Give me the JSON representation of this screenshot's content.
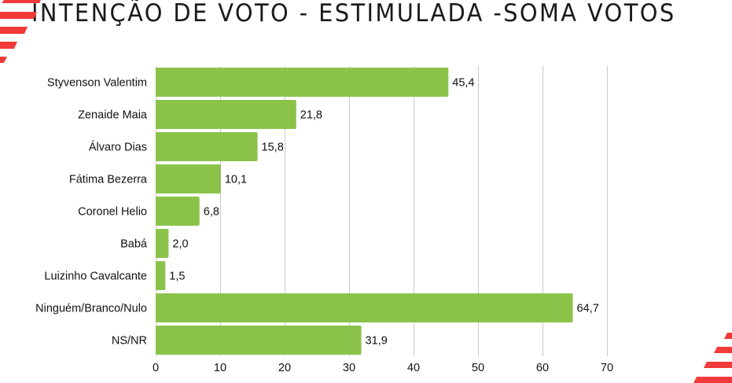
{
  "title": "INTENÇÃO DE VOTO - ESTIMULADA -SOMA VOTOS",
  "colors": {
    "bar": "#8BC34A",
    "grid": "#C9C9C9",
    "accent": "#F23A3A",
    "text": "#111111"
  },
  "chart_data": {
    "type": "bar",
    "orientation": "horizontal",
    "title": "INTENÇÃO DE VOTO - ESTIMULADA -SOMA VOTOS",
    "xlabel": "",
    "ylabel": "",
    "categories": [
      "Styvenson Valentim",
      "Zenaide Maia",
      "Álvaro Dias",
      "Fátima Bezerra",
      "Coronel Helio",
      "Babá",
      "Luizinho Cavalcante",
      "Ninguém/Branco/Nulo",
      "NS/NR"
    ],
    "values": [
      45.4,
      21.8,
      15.8,
      10.1,
      6.8,
      2.0,
      1.5,
      64.7,
      31.9
    ],
    "value_labels": [
      "45,4",
      "21,8",
      "15,8",
      "10,1",
      "6,8",
      "2,0",
      "1,5",
      "64,7",
      "31,9"
    ],
    "xlim": [
      0,
      70
    ],
    "xticks": [
      0,
      10,
      20,
      30,
      40,
      50,
      60,
      70
    ],
    "xtick_labels": [
      "0",
      "10",
      "20",
      "30",
      "40",
      "50",
      "60",
      "70"
    ],
    "grid": "vertical",
    "legend": "none"
  }
}
